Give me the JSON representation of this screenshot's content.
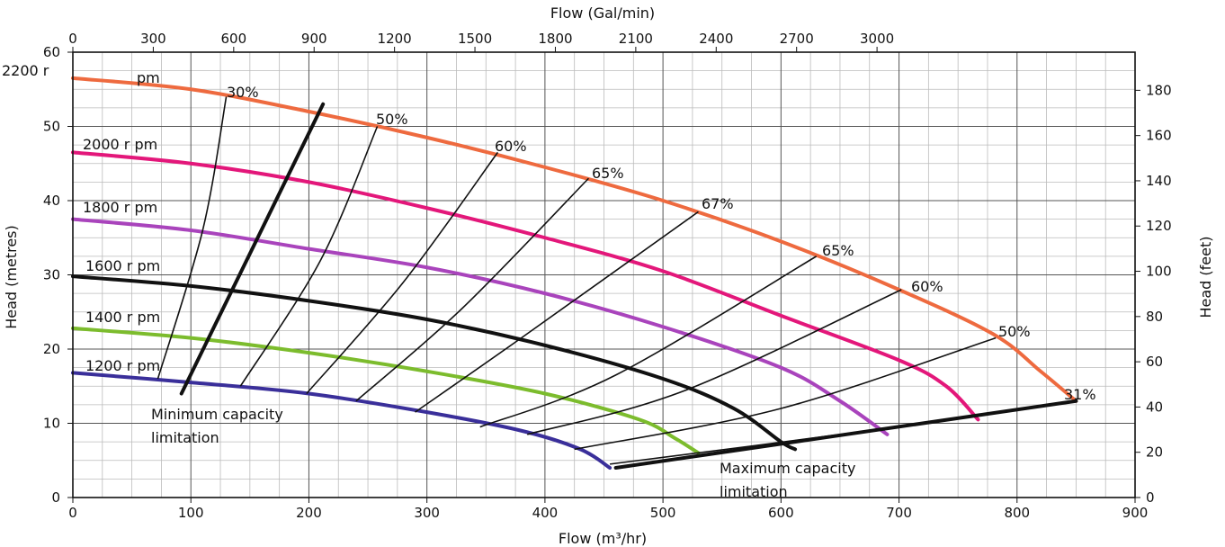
{
  "chart_data": {
    "type": "line",
    "title": "",
    "x_axis": {
      "label": "Flow (m³/hr)",
      "range": [
        0,
        900
      ],
      "ticks": [
        0,
        100,
        200,
        300,
        400,
        500,
        600,
        700,
        800,
        900
      ]
    },
    "x2_axis": {
      "label": "Flow (Gal/min)",
      "range_m3hr": [
        0,
        900
      ],
      "ticks": [
        0,
        300,
        600,
        900,
        1200,
        1500,
        1800,
        2100,
        2400,
        2700,
        3000
      ],
      "conversion_gpm_per_m3hr": 4.4029
    },
    "y_axis": {
      "label": "Head (metres)",
      "range": [
        0,
        60
      ],
      "ticks": [
        0,
        10,
        20,
        30,
        40,
        50,
        60
      ]
    },
    "y2_axis": {
      "label": "Head (feet)",
      "range_m": [
        0,
        60
      ],
      "ticks": [
        0,
        20,
        40,
        60,
        80,
        100,
        120,
        140,
        160,
        180
      ],
      "conversion_ft_per_m": 3.2808
    },
    "grid": true,
    "series": [
      {
        "name": "2200 r pm",
        "color": "#ee6a3f",
        "width": 4,
        "x": [
          0,
          100,
          200,
          300,
          400,
          500,
          600,
          700,
          780,
          820,
          850
        ],
        "y": [
          56.5,
          55,
          52,
          48.5,
          44.5,
          40,
          34.5,
          28,
          22,
          17,
          13
        ]
      },
      {
        "name": "2000 r pm",
        "color": "#e3177a",
        "width": 4,
        "x": [
          0,
          100,
          200,
          300,
          400,
          500,
          600,
          700,
          740,
          767
        ],
        "y": [
          46.5,
          45,
          42.5,
          39,
          35,
          30.5,
          24.5,
          18.5,
          15,
          10.5
        ]
      },
      {
        "name": "1800 r pm",
        "color": "#a944bc",
        "width": 4,
        "x": [
          0,
          100,
          200,
          300,
          400,
          500,
          600,
          650,
          690
        ],
        "y": [
          37.5,
          36,
          33.5,
          31,
          27.5,
          23,
          17.5,
          13,
          8.5
        ]
      },
      {
        "name": "1600 r pm",
        "color": "#111111",
        "width": 4,
        "x": [
          0,
          100,
          200,
          300,
          400,
          500,
          560,
          600,
          612
        ],
        "y": [
          29.8,
          28.5,
          26.5,
          24,
          20.5,
          16,
          12,
          7.5,
          6.5
        ]
      },
      {
        "name": "1400 r pm",
        "color": "#7cbc2d",
        "width": 4,
        "x": [
          0,
          100,
          200,
          300,
          400,
          480,
          510,
          530
        ],
        "y": [
          22.8,
          21.5,
          19.5,
          17,
          14,
          10.5,
          8,
          6
        ]
      },
      {
        "name": "1200 r pm",
        "color": "#3a2f9a",
        "width": 4,
        "x": [
          0,
          100,
          200,
          300,
          380,
          430,
          455
        ],
        "y": [
          16.8,
          15.5,
          14,
          11.5,
          9,
          6.5,
          4
        ]
      }
    ],
    "efficiency_curves": [
      {
        "label": "30%",
        "x": [
          72,
          110,
          130
        ],
        "y": [
          16,
          36,
          54
        ]
      },
      {
        "label": "50%",
        "x": [
          142,
          210,
          258
        ],
        "y": [
          15,
          32,
          50
        ]
      },
      {
        "label": "60%",
        "x": [
          198,
          280,
          360
        ],
        "y": [
          14,
          29,
          46.5
        ]
      },
      {
        "label": "65%",
        "x": [
          240,
          330,
          437
        ],
        "y": [
          13,
          25.5,
          43
        ]
      },
      {
        "label": "67%",
        "x": [
          290,
          380,
          530
        ],
        "y": [
          11.5,
          21.5,
          38.5
        ]
      },
      {
        "label": "65%",
        "x": [
          345,
          460,
          630
        ],
        "y": [
          9.5,
          16.5,
          32.5
        ]
      },
      {
        "label": "60%",
        "x": [
          385,
          520,
          702
        ],
        "y": [
          8.5,
          14.5,
          28
        ]
      },
      {
        "label": "50%",
        "x": [
          425,
          600,
          782
        ],
        "y": [
          6.5,
          12,
          21.5
        ]
      },
      {
        "label": "31%",
        "x": [
          455,
          650,
          848
        ],
        "y": [
          4.5,
          8.5,
          13
        ]
      }
    ],
    "limitations": [
      {
        "label": "Minimum capacity limitation",
        "x": [
          92,
          212
        ],
        "y": [
          14,
          53
        ]
      },
      {
        "label": "Maximum capacity limitation",
        "x": [
          460,
          850
        ],
        "y": [
          4,
          13
        ]
      }
    ],
    "annotations": [
      "30%",
      "50%",
      "60%",
      "65%",
      "67%",
      "65%",
      "60%",
      "50%",
      "31%"
    ]
  }
}
